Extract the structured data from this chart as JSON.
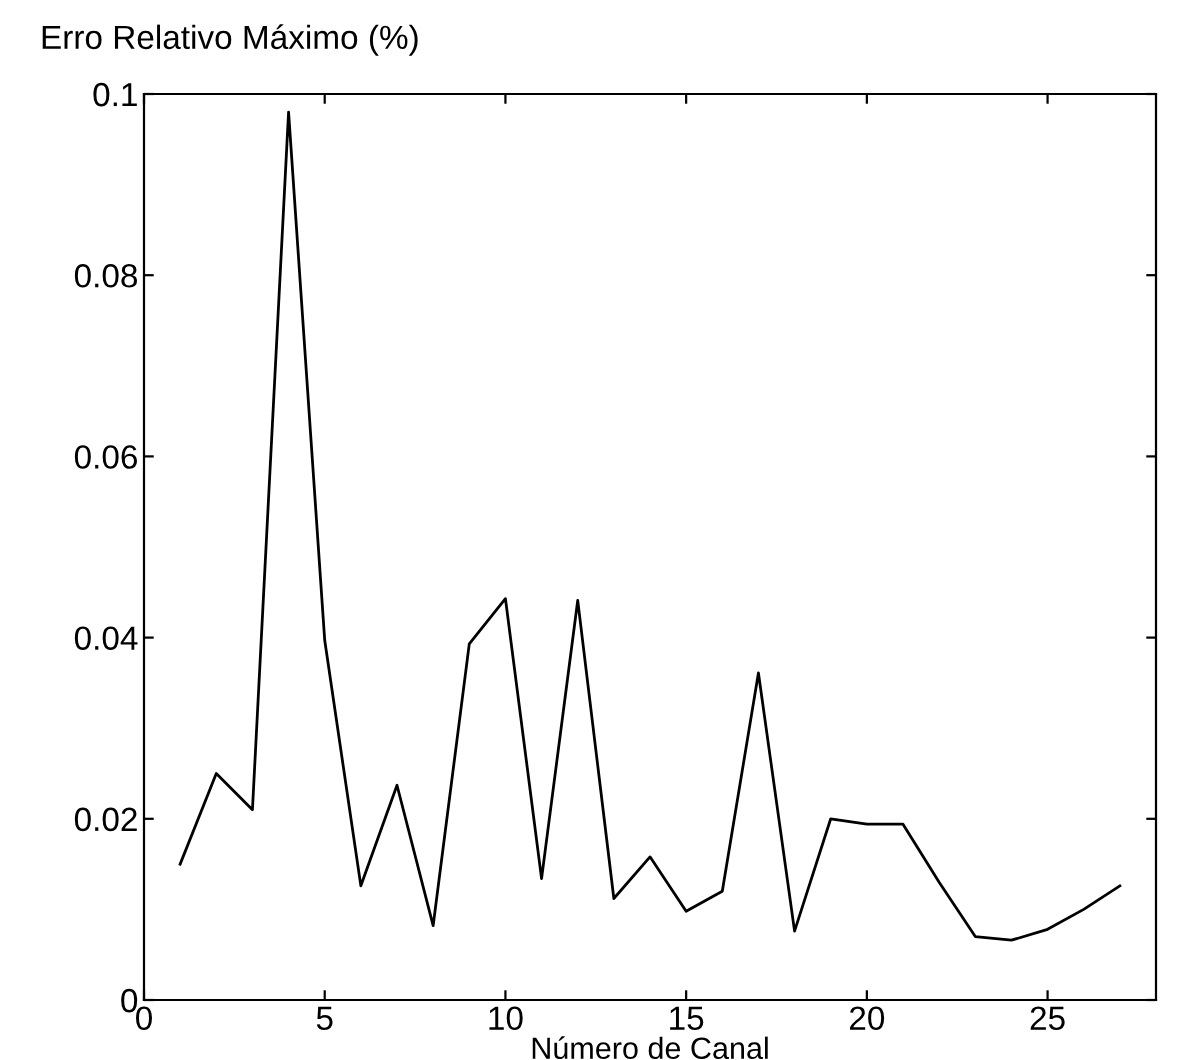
{
  "chart_data": {
    "type": "line",
    "ylabel": "Erro Relativo Máximo (%)",
    "xlabel": "Número de Canal",
    "x": [
      1,
      2,
      3,
      4,
      5,
      6,
      7,
      8,
      9,
      10,
      11,
      12,
      13,
      14,
      15,
      16,
      17,
      18,
      19,
      20,
      21,
      22,
      23,
      24,
      25,
      26,
      27
    ],
    "series": [
      {
        "color": "#000000",
        "values": [
          0.015,
          0.025,
          0.021,
          0.098,
          0.0397,
          0.0126,
          0.0237,
          0.0082,
          0.0393,
          0.0443,
          0.0134,
          0.0441,
          0.0112,
          0.0158,
          0.0098,
          0.012,
          0.0361,
          0.0076,
          0.02,
          0.0194,
          0.0194,
          0.013,
          0.007,
          0.0066,
          0.0078,
          0.01,
          0.0126
        ]
      }
    ],
    "xlim": [
      0,
      28
    ],
    "xticks": [
      0,
      5,
      10,
      15,
      20,
      25
    ],
    "ylim": [
      0,
      0.1
    ],
    "yticks": [
      0,
      0.02,
      0.04,
      0.06,
      0.08,
      0.1
    ],
    "grid": false,
    "legend": false,
    "marker": "none",
    "line_style": "solid"
  }
}
